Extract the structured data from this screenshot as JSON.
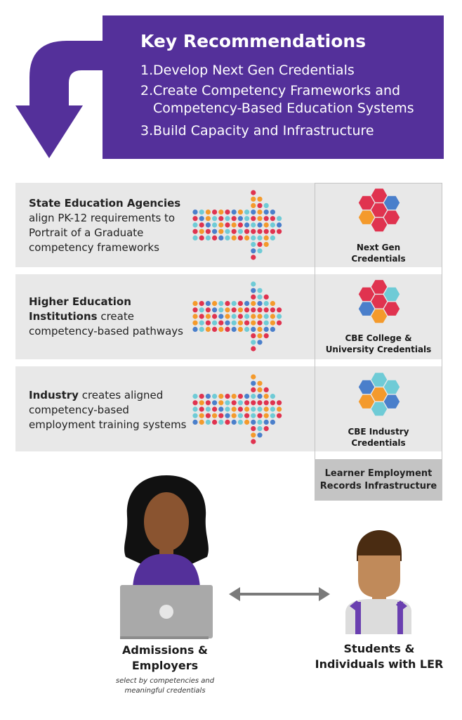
{
  "header": {
    "title": "Key Recommendations",
    "recommendations": [
      {
        "num": "1.",
        "lines": [
          "Develop Next Gen Credentials"
        ]
      },
      {
        "num": "2.",
        "lines": [
          "Create Competency Frameworks and",
          "Competency-Based Education Systems"
        ]
      },
      {
        "num": "3.",
        "lines": [
          "Build Capacity and Infrastructure"
        ]
      }
    ]
  },
  "rows": [
    {
      "bold": "State Education Agencies",
      "lines": [
        "align PK-12 requirements to",
        "Portrait of a Graduate",
        "competency frameworks"
      ]
    },
    {
      "bold_lines": [
        "Higher Education",
        "Institutions"
      ],
      "inline_rest": " create",
      "lines": [
        "competency-based pathways"
      ]
    },
    {
      "bold": "Industry",
      "inline_rest": " creates aligned",
      "lines": [
        "competency-based",
        "employment training systems"
      ]
    }
  ],
  "credentials": [
    {
      "lines": [
        "Next Gen",
        "Credentials"
      ]
    },
    {
      "lines": [
        "CBE College &",
        "University Credentials"
      ]
    },
    {
      "lines": [
        "CBE Industry",
        "Credentials"
      ]
    }
  ],
  "infrastructure": {
    "lines": [
      "Learner Employment",
      "Records Infrastructure"
    ]
  },
  "people": {
    "admissions": {
      "lines": [
        "Admissions &",
        "Employers"
      ],
      "sub_lines": [
        "select by competencies and",
        "meaningful credentials"
      ]
    },
    "students": {
      "lines": [
        "Students &",
        "Individuals with LER"
      ]
    }
  },
  "colors": {
    "purple": "#54309a",
    "red": "#e0334f",
    "orange": "#f49a2c",
    "blue": "#4a7fcb",
    "teal": "#6fcbd6",
    "band": "#e8e8e8",
    "gray": "#c4c4c4"
  },
  "icons": [
    "curved-down-arrow-icon",
    "dot-arrow-icon",
    "hexagon-cluster-icon",
    "double-arrow-icon",
    "laptop-icon",
    "person-icon"
  ]
}
